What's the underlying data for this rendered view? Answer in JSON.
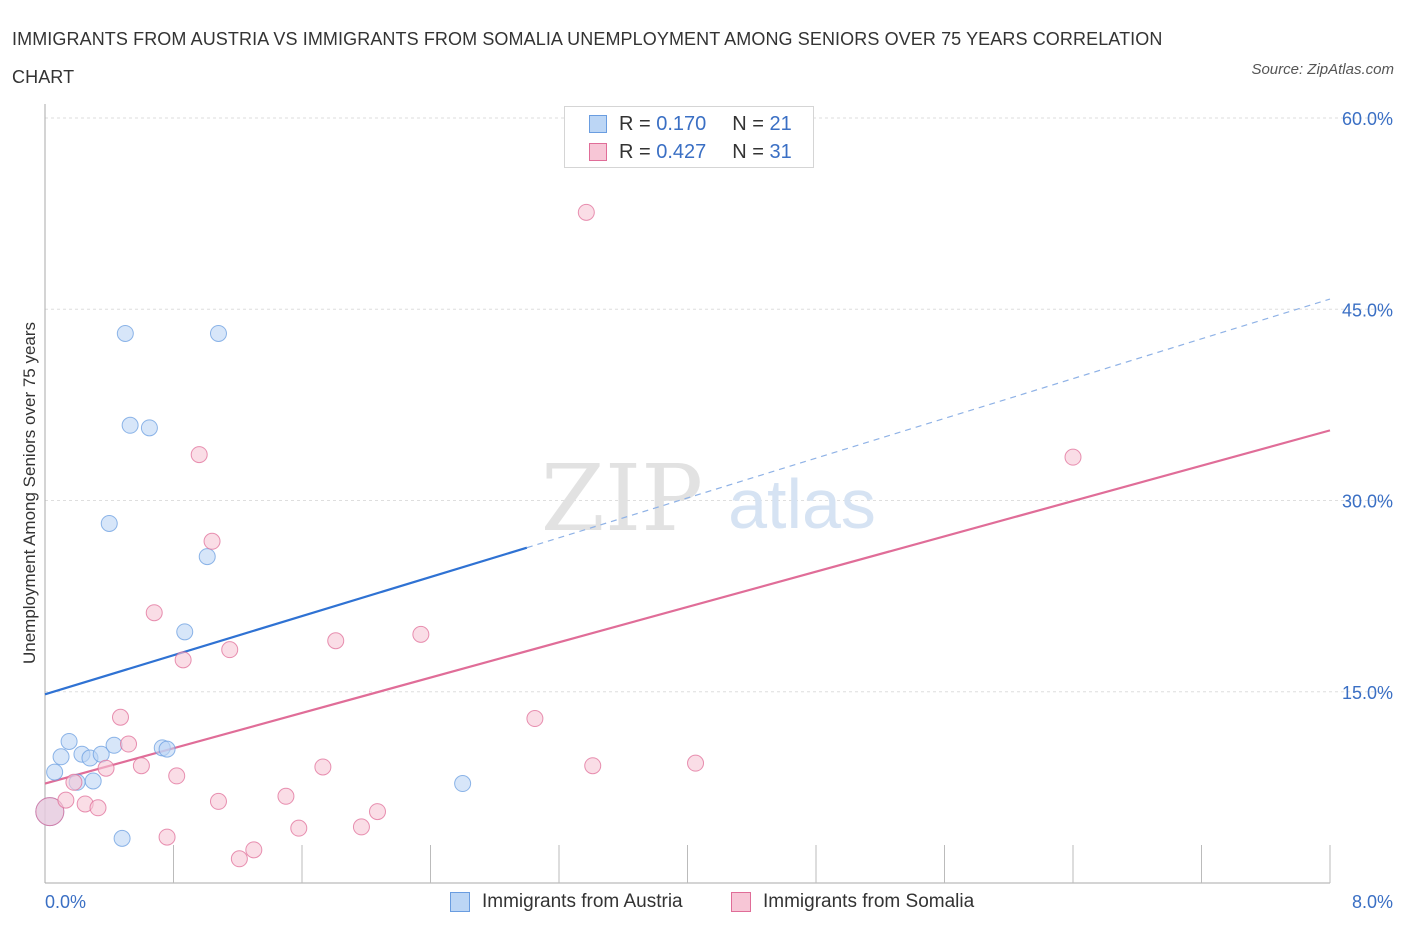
{
  "chart_data": {
    "type": "scatter",
    "title": "IMMIGRANTS FROM AUSTRIA VS IMMIGRANTS FROM SOMALIA UNEMPLOYMENT AMONG SENIORS OVER 75 YEARS CORRELATION CHART",
    "source": "Source: ZipAtlas.com",
    "xlabel": "",
    "ylabel": "Unemployment Among Seniors over 75 years",
    "xlim": [
      0,
      8
    ],
    "ylim": [
      0,
      60
    ],
    "x_tick_labels": [
      "0.0%",
      "8.0%"
    ],
    "y_tick_values": [
      15,
      30,
      45,
      60
    ],
    "y_tick_labels": [
      "15.0%",
      "30.0%",
      "45.0%",
      "60.0%"
    ],
    "watermark": {
      "zip": "ZIP",
      "atlas": "atlas"
    },
    "legend": {
      "r_label": "R =",
      "n_label": "N =",
      "entries": [
        {
          "r": "0.170",
          "n": "21"
        },
        {
          "r": "0.427",
          "n": "31"
        }
      ]
    },
    "series": [
      {
        "name": "Immigrants from Austria",
        "color": "#6a9de0",
        "fill": "#bcd6f5",
        "trend": {
          "x0": 0.0,
          "y0": 14.8,
          "x1": 3.0,
          "y1": 26.3,
          "dashed_to_x": 8.0,
          "dashed_to_y": 45.8
        },
        "points": [
          {
            "x": 0.03,
            "y": 5.6,
            "big": true
          },
          {
            "x": 0.06,
            "y": 8.7
          },
          {
            "x": 0.1,
            "y": 9.9
          },
          {
            "x": 0.15,
            "y": 11.1
          },
          {
            "x": 0.2,
            "y": 7.9
          },
          {
            "x": 0.23,
            "y": 10.1
          },
          {
            "x": 0.28,
            "y": 9.8
          },
          {
            "x": 0.3,
            "y": 8.0
          },
          {
            "x": 0.35,
            "y": 10.1
          },
          {
            "x": 0.4,
            "y": 28.2
          },
          {
            "x": 0.43,
            "y": 10.8
          },
          {
            "x": 0.48,
            "y": 3.5
          },
          {
            "x": 0.5,
            "y": 43.1
          },
          {
            "x": 0.53,
            "y": 35.9
          },
          {
            "x": 0.65,
            "y": 35.7
          },
          {
            "x": 0.73,
            "y": 10.6
          },
          {
            "x": 0.76,
            "y": 10.5
          },
          {
            "x": 0.87,
            "y": 19.7
          },
          {
            "x": 1.01,
            "y": 25.6
          },
          {
            "x": 1.08,
            "y": 43.1
          },
          {
            "x": 2.6,
            "y": 7.8
          }
        ]
      },
      {
        "name": "Immigrants from Somalia",
        "color": "#e06d98",
        "fill": "#f7c6d6",
        "trend": {
          "x0": 0.0,
          "y0": 7.8,
          "x1": 8.0,
          "y1": 35.5
        },
        "points": [
          {
            "x": 0.03,
            "y": 5.6,
            "big": true
          },
          {
            "x": 0.13,
            "y": 6.5
          },
          {
            "x": 0.18,
            "y": 7.9
          },
          {
            "x": 0.25,
            "y": 6.2
          },
          {
            "x": 0.33,
            "y": 5.9
          },
          {
            "x": 0.38,
            "y": 9.0
          },
          {
            "x": 0.47,
            "y": 13.0
          },
          {
            "x": 0.52,
            "y": 10.9
          },
          {
            "x": 0.6,
            "y": 9.2
          },
          {
            "x": 0.68,
            "y": 21.2
          },
          {
            "x": 0.76,
            "y": 3.6
          },
          {
            "x": 0.82,
            "y": 8.4
          },
          {
            "x": 0.86,
            "y": 17.5
          },
          {
            "x": 0.96,
            "y": 33.6
          },
          {
            "x": 1.04,
            "y": 26.8
          },
          {
            "x": 1.08,
            "y": 6.4
          },
          {
            "x": 1.15,
            "y": 18.3
          },
          {
            "x": 1.21,
            "y": 1.9
          },
          {
            "x": 1.3,
            "y": 2.6
          },
          {
            "x": 1.5,
            "y": 6.8
          },
          {
            "x": 1.58,
            "y": 4.3
          },
          {
            "x": 1.73,
            "y": 9.1
          },
          {
            "x": 1.81,
            "y": 19.0
          },
          {
            "x": 1.97,
            "y": 4.4
          },
          {
            "x": 2.07,
            "y": 5.6
          },
          {
            "x": 2.34,
            "y": 19.5
          },
          {
            "x": 3.05,
            "y": 12.9
          },
          {
            "x": 3.37,
            "y": 52.6
          },
          {
            "x": 3.41,
            "y": 9.2
          },
          {
            "x": 4.05,
            "y": 9.4
          },
          {
            "x": 6.4,
            "y": 33.4
          }
        ]
      }
    ]
  }
}
